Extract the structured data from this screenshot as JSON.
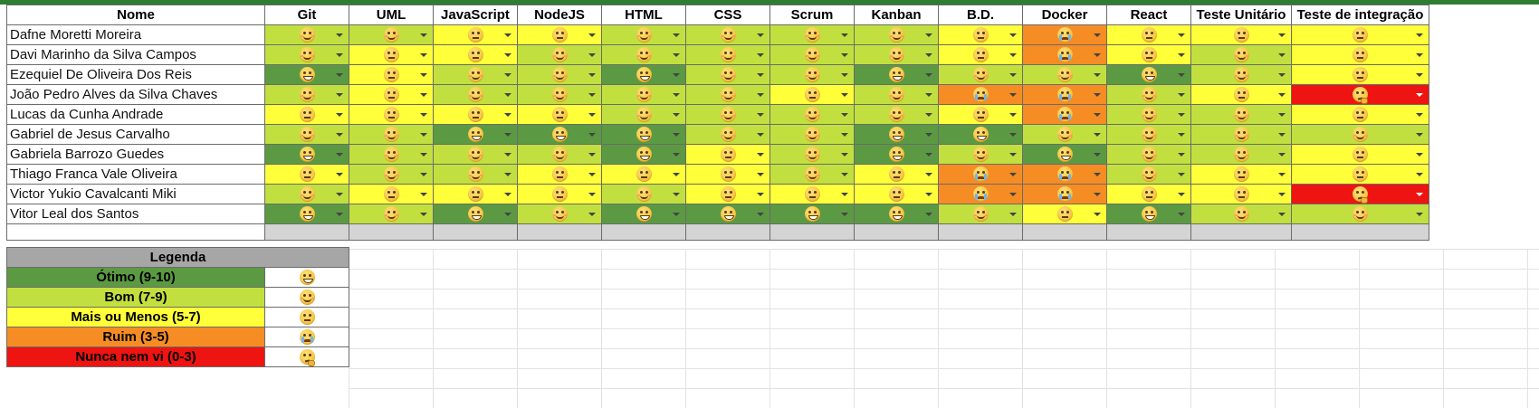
{
  "colors": {
    "otimo": "#5b9a42",
    "bom": "#c1e03f",
    "mais_ou_menos": "#ffff3a",
    "ruim": "#f68c24",
    "nunca": "#ee1411",
    "legend_header": "#a6a6a6",
    "gray_band": "#d4d4d4"
  },
  "header": {
    "name_col": "Nome",
    "skills": [
      "Git",
      "UML",
      "JavaScript",
      "NodeJS",
      "HTML",
      "CSS",
      "Scrum",
      "Kanban",
      "B.D.",
      "Docker",
      "React",
      "Teste Unitário",
      "Teste de integração"
    ]
  },
  "rows": [
    {
      "name": "Dafne Moretti Moreira",
      "levels": [
        "bom",
        "bom",
        "mais",
        "mais",
        "bom",
        "bom",
        "bom",
        "bom",
        "mais",
        "ruim",
        "mais",
        "mais",
        "mais"
      ]
    },
    {
      "name": "Davi Marinho da Silva Campos",
      "levels": [
        "bom",
        "mais",
        "mais",
        "bom",
        "bom",
        "bom",
        "bom",
        "bom",
        "mais",
        "ruim",
        "mais",
        "bom",
        "mais"
      ]
    },
    {
      "name": "Ezequiel De Oliveira Dos Reis",
      "levels": [
        "otimo",
        "mais",
        "bom",
        "bom",
        "otimo",
        "bom",
        "bom",
        "otimo",
        "bom",
        "bom",
        "otimo",
        "bom",
        "mais"
      ]
    },
    {
      "name": "João Pedro Alves da Silva Chaves",
      "levels": [
        "bom",
        "mais",
        "bom",
        "bom",
        "bom",
        "bom",
        "mais",
        "bom",
        "ruim",
        "ruim",
        "bom",
        "mais",
        "nunca"
      ]
    },
    {
      "name": "Lucas da Cunha Andrade",
      "levels": [
        "mais",
        "mais",
        "mais",
        "mais",
        "bom",
        "bom",
        "bom",
        "bom",
        "mais",
        "ruim",
        "bom",
        "bom",
        "mais"
      ]
    },
    {
      "name": "Gabriel de Jesus Carvalho",
      "levels": [
        "bom",
        "bom",
        "otimo",
        "otimo",
        "otimo",
        "bom",
        "bom",
        "otimo",
        "otimo",
        "bom",
        "bom",
        "bom",
        "bom"
      ]
    },
    {
      "name": "Gabriela Barrozo Guedes",
      "levels": [
        "otimo",
        "bom",
        "bom",
        "bom",
        "otimo",
        "mais",
        "bom",
        "otimo",
        "bom",
        "otimo",
        "bom",
        "bom",
        "mais"
      ]
    },
    {
      "name": "Thiago Franca Vale Oliveira",
      "levels": [
        "mais",
        "bom",
        "bom",
        "mais",
        "mais",
        "mais",
        "bom",
        "mais",
        "ruim",
        "ruim",
        "bom",
        "mais",
        "mais"
      ]
    },
    {
      "name": "Victor Yukio Cavalcanti Miki",
      "levels": [
        "bom",
        "mais",
        "mais",
        "mais",
        "bom",
        "mais",
        "mais",
        "mais",
        "ruim",
        "ruim",
        "mais",
        "mais",
        "nunca"
      ]
    },
    {
      "name": "Vitor Leal dos Santos",
      "levels": [
        "otimo",
        "bom",
        "otimo",
        "bom",
        "otimo",
        "otimo",
        "otimo",
        "otimo",
        "bom",
        "mais",
        "otimo",
        "bom",
        "bom"
      ]
    }
  ],
  "legend": {
    "title": "Legenda",
    "items": [
      {
        "key": "otimo",
        "label": "Ótimo (9-10)"
      },
      {
        "key": "bom",
        "label": "Bom (7-9)"
      },
      {
        "key": "mais",
        "label": "Mais ou Menos (5-7)"
      },
      {
        "key": "ruim",
        "label": "Ruim (3-5)"
      },
      {
        "key": "nunca",
        "label": "Nunca nem vi (0-3)"
      }
    ]
  }
}
